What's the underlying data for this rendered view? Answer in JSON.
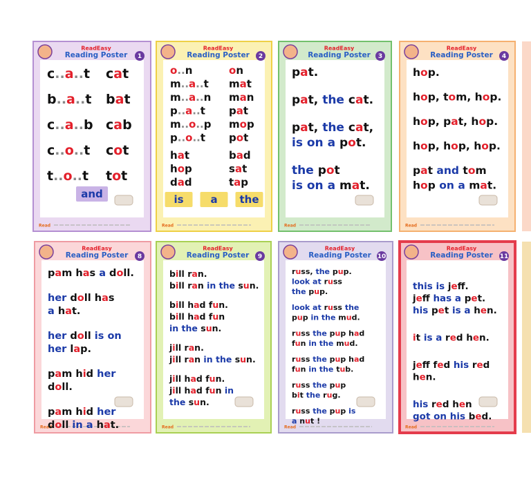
{
  "brand": "Read",
  "header": {
    "title_a": "ReadEasy",
    "title_b": "Reading Poster"
  },
  "colors": {
    "black": "#111111",
    "red": "#e3202b",
    "blue": "#1b3aa8",
    "dots": "#888888"
  },
  "posters": [
    {
      "number": 1,
      "bg": "#ead9f1",
      "border": "#b48fd2",
      "blue_words": [],
      "paragraphs": [
        [
          [
            "c..a..t",
            "cat"
          ]
        ],
        [
          [
            "b..a..t",
            "bat"
          ]
        ],
        [
          [
            "c..a..b",
            "cab"
          ]
        ],
        [
          [
            "c..o..t",
            "cot"
          ]
        ],
        [
          [
            "t..o..t",
            "tot"
          ]
        ]
      ],
      "boxes": [
        "and"
      ],
      "box_color": "#c9b3e6"
    },
    {
      "number": 2,
      "bg": "#fbf1b3",
      "border": "#eed046",
      "blue_words": [],
      "paragraphs": [
        [
          [
            "o..n",
            "on"
          ],
          [
            "m..a..t",
            "mat"
          ],
          [
            "m..a..n",
            "man"
          ],
          [
            "p..a..t",
            "pat"
          ],
          [
            "m..o..p",
            "mop"
          ],
          [
            "p..o..t",
            "pot"
          ]
        ],
        [
          [
            "hat",
            "bad"
          ],
          [
            "hop",
            "sat"
          ],
          [
            "dad",
            "tap"
          ]
        ]
      ],
      "boxes": [
        "is",
        "a",
        "the"
      ],
      "box_color": "#f6dc6a"
    },
    {
      "number": 3,
      "bg": "#d2eacb",
      "border": "#72c06c",
      "blue_words": [
        "the",
        "is",
        "on",
        "a"
      ],
      "paragraphs": [
        [
          "pat."
        ],
        [
          "pat, the cat."
        ],
        [
          "pat, the cat,",
          "is on a pot."
        ],
        [
          "the pot",
          "is on a mat."
        ]
      ]
    },
    {
      "number": 4,
      "bg": "#fde1c3",
      "border": "#f5b06f",
      "blue_words": [
        "and",
        "on",
        "a"
      ],
      "paragraphs": [
        [
          "hop."
        ],
        [
          "hop, tom, hop."
        ],
        [
          "hop, pat, hop."
        ],
        [
          "hop, hop, hop."
        ],
        [
          "pat and tom",
          "hop on a mat."
        ]
      ]
    },
    {
      "number": 8,
      "bg": "#fbd7d9",
      "border": "#ef9ba2",
      "blue_words": [
        "a",
        "her",
        "is",
        "on",
        "in"
      ],
      "paragraphs": [
        [
          "pam has a doll."
        ],
        [
          "her doll has",
          "a hat."
        ],
        [
          "her doll is on",
          "her lap."
        ],
        [
          "pam hid her",
          "doll."
        ],
        [
          "pam hid her",
          "doll in a hat."
        ]
      ]
    },
    {
      "number": 9,
      "bg": "#e2f1b4",
      "border": "#a9d053",
      "blue_words": [
        "in",
        "the"
      ],
      "paragraphs": [
        [
          "bill ran.",
          "bill ran in the sun."
        ],
        [
          "bill had fun.",
          "bill had fun",
          "in the sun."
        ],
        [
          "jill ran.",
          "jill ran in the sun."
        ],
        [
          "jill had fun.",
          "jill had fun in",
          "the sun."
        ]
      ]
    },
    {
      "number": 10,
      "bg": "#e2dbef",
      "border": "#a99bcc",
      "blue_words": [
        "the",
        "look",
        "at",
        "in",
        "is",
        "a"
      ],
      "paragraphs": [
        [
          "russ, the pup.",
          "look at russ",
          "the pup."
        ],
        [
          "look at russ the",
          "pup in the mud."
        ],
        [
          "russ the pup had",
          "fun in the mud."
        ],
        [
          "russ the pup had",
          "fun in the tub."
        ],
        [
          "russ the pup",
          "bit the rug."
        ],
        [
          "russ the pup is",
          "a nut !"
        ]
      ]
    },
    {
      "number": 11,
      "bg": "#f7c2c6",
      "border": "#e43c4c",
      "blue_words": [
        "this",
        "is",
        "has",
        "a",
        "his",
        "got",
        "on"
      ],
      "paragraphs": [
        [
          "this is jeff.",
          "jeff has a pet.",
          "his pet is a hen."
        ],
        [
          "it is a red hen."
        ],
        [
          "jeff fed his red",
          "hen."
        ],
        [
          "his red hen",
          "got on his bed."
        ]
      ]
    }
  ]
}
